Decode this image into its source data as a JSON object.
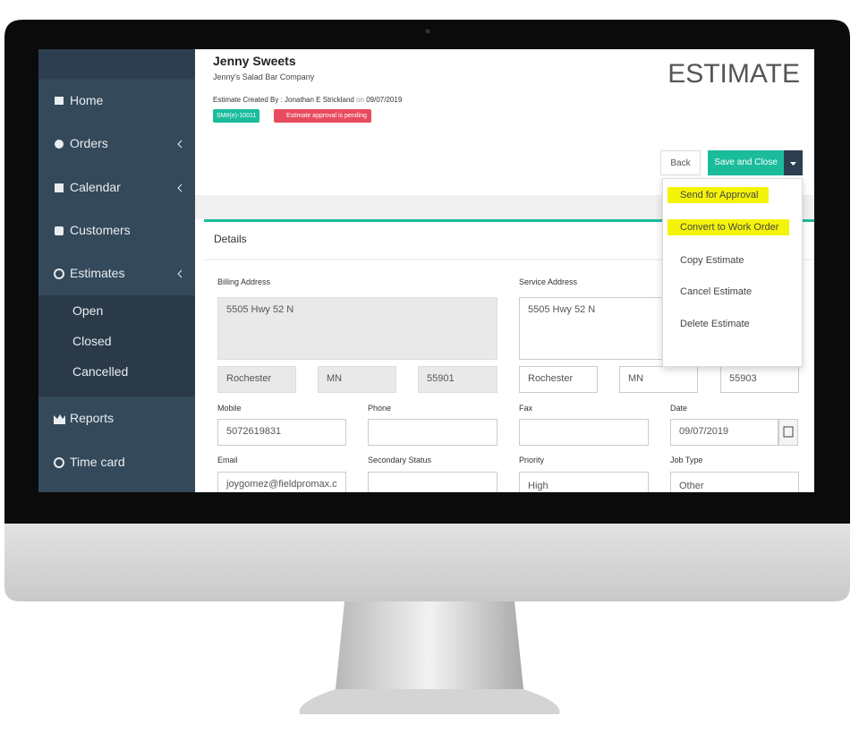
{
  "sidebar": {
    "items": [
      "Home",
      "Orders",
      "Calendar",
      "Customers",
      "Estimates"
    ],
    "subitems": [
      "Open",
      "Closed",
      "Cancelled"
    ],
    "items2": [
      "Reports",
      "Time card"
    ]
  },
  "header": {
    "customer": "Jenny Sweets",
    "company": "Jenny's Salad Bar Company",
    "created_by": "Estimate Created By : Jonathan E Strickland",
    "on": "on",
    "date": "09/07/2019",
    "badge_id": "SM#(e)-10011",
    "badge_status": "Estimate approval is pending",
    "title": "ESTIMATE"
  },
  "buttons": {
    "back": "Back",
    "save": "Save and Close"
  },
  "menu": [
    "Send for Approval",
    "Convert to Work Order",
    "Copy Estimate",
    "Cancel Estimate",
    "Delete Estimate"
  ],
  "details": {
    "title": "Details",
    "billing": {
      "label": "Billing Address",
      "street": "5505 Hwy 52 N",
      "city": "Rochester",
      "state": "MN",
      "zip": "55901"
    },
    "service": {
      "label": "Service Address",
      "street": "5505 Hwy 52 N",
      "city": "Rochester",
      "state": "MN",
      "zip": "55903"
    },
    "fields": [
      {
        "label": "Mobile",
        "value": "5072619831"
      },
      {
        "label": "Phone"
      },
      {
        "label": "Fax"
      },
      {
        "label": "Date",
        "value": "09/07/2019"
      },
      {
        "label": "Email",
        "value": "joygomez@fieldpromax.c"
      },
      {
        "label": "Secondary Status"
      },
      {
        "label": "Priority",
        "value": "High"
      },
      {
        "label": "Job Type",
        "value": "Other"
      }
    ]
  }
}
